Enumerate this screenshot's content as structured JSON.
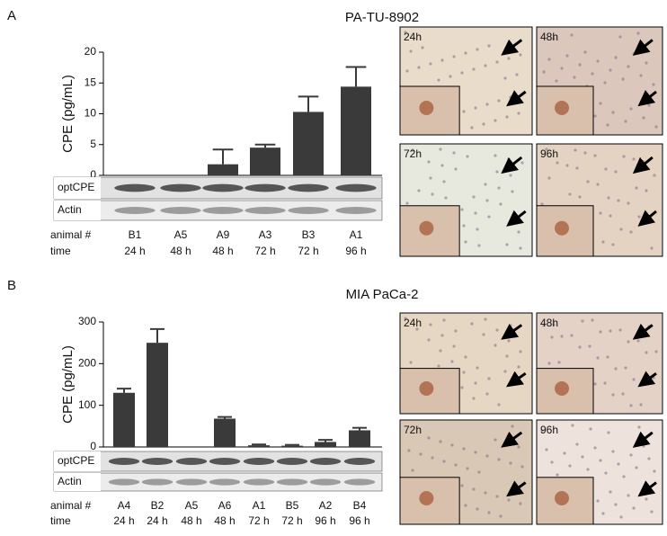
{
  "chart_data": [
    {
      "type": "bar",
      "title": "PA-TU-8902",
      "y_label": "CPE (pg/mL)",
      "categories": [
        "B1",
        "A5",
        "A9",
        "A3",
        "B3",
        "A1"
      ],
      "values": [
        0,
        0,
        1.8,
        4.5,
        10.3,
        14.4
      ],
      "errors": [
        null,
        null,
        2.4,
        0.5,
        2.5,
        3.2
      ],
      "color": "#3a3a3a",
      "ylim": [
        0,
        20
      ],
      "yticks": [
        0,
        5,
        10,
        15,
        20
      ]
    },
    {
      "type": "bar",
      "title": "MIA PaCa-2",
      "y_label": "CPE (pg/mL)",
      "categories": [
        "A4",
        "B2",
        "A5",
        "A6",
        "A1",
        "B5",
        "A2",
        "B4"
      ],
      "values": [
        130,
        250,
        0,
        68,
        4,
        3,
        12,
        40
      ],
      "errors": [
        10,
        33,
        null,
        4,
        2,
        2,
        5,
        6
      ],
      "color": "#3a3a3a",
      "ylim": [
        0,
        300
      ],
      "yticks": [
        0,
        100,
        200,
        300
      ]
    }
  ],
  "panels": [
    {
      "letter": "A",
      "blot_labels": [
        "optCPE",
        "Actin"
      ],
      "row_labels": [
        "animal #",
        "time"
      ],
      "times": [
        "24 h",
        "48 h",
        "48 h",
        "72 h",
        "72 h",
        "96 h"
      ],
      "image_labels": [
        "24h",
        "48h",
        "72h",
        "96h"
      ]
    },
    {
      "letter": "B",
      "blot_labels": [
        "optCPE",
        "Actin"
      ],
      "row_labels": [
        "animal #",
        "time"
      ],
      "times": [
        "24 h",
        "24 h",
        "48 h",
        "48 h",
        "72 h",
        "72 h",
        "96 h",
        "96 h"
      ],
      "image_labels": [
        "24h",
        "48h",
        "72h",
        "96h"
      ]
    }
  ]
}
